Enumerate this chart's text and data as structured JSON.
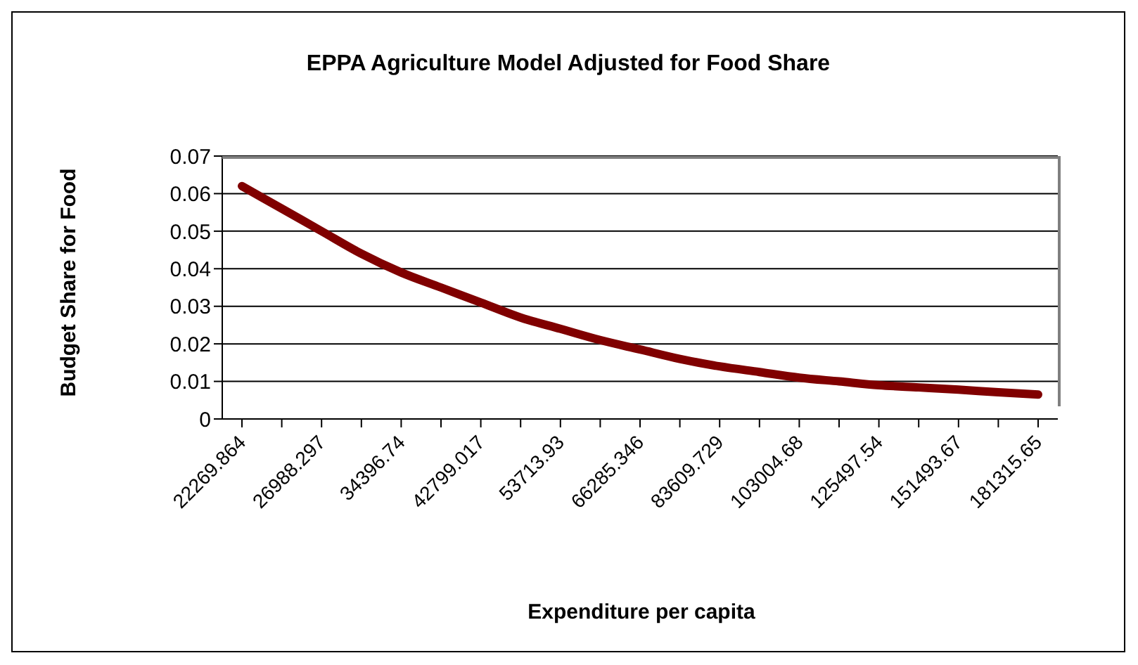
{
  "chart_data": {
    "type": "line",
    "title": "EPPA Agriculture Model Adjusted for Food Share",
    "xlabel": "Expenditure per capita",
    "ylabel": "Budget Share for Food",
    "categories": [
      "22269.864",
      null,
      "26988.297",
      null,
      "34396.74",
      null,
      "42799.017",
      null,
      "53713.93",
      null,
      "66285.346",
      null,
      "83609.729",
      null,
      "103004.68",
      null,
      "125497.54",
      null,
      "151493.67",
      null,
      "181315.65"
    ],
    "series": [
      {
        "color": "#800000",
        "values": [
          0.062,
          0.056,
          0.05,
          0.044,
          0.039,
          0.035,
          0.031,
          0.027,
          0.024,
          0.021,
          0.0185,
          0.016,
          0.014,
          0.0125,
          0.011,
          0.01,
          0.009,
          0.0084,
          0.0078,
          0.0071,
          0.0065
        ]
      }
    ],
    "ylim": [
      0,
      0.07
    ],
    "yticks": [
      0,
      0.01,
      0.02,
      0.03,
      0.04,
      0.05,
      0.06,
      0.07
    ],
    "grid": "y",
    "legend": false,
    "marker": "none",
    "line_style": "solid"
  }
}
